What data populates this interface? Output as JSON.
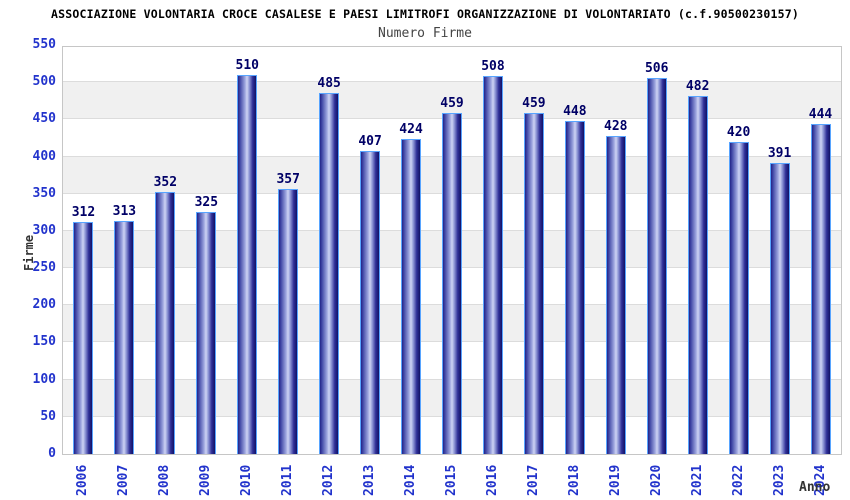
{
  "header": {
    "title": "ASSOCIAZIONE VOLONTARIA CROCE CASALESE E PAESI LIMITROFI ORGANIZZAZIONE DI VOLONTARIATO (c.f.90500230157)",
    "subtitle": "Numero Firme"
  },
  "chart_data": {
    "type": "bar",
    "title": "Numero Firme",
    "categories": [
      "2006",
      "2007",
      "2008",
      "2009",
      "2010",
      "2011",
      "2012",
      "2013",
      "2014",
      "2015",
      "2016",
      "2017",
      "2018",
      "2019",
      "2020",
      "2021",
      "2022",
      "2023",
      "2024"
    ],
    "values": [
      312,
      313,
      352,
      325,
      510,
      357,
      485,
      407,
      424,
      459,
      508,
      459,
      448,
      428,
      506,
      482,
      420,
      391,
      444
    ],
    "xlabel": "Anno",
    "ylabel": "Firme",
    "ylim": [
      0,
      550
    ],
    "ytick_step": 50,
    "yticks": [
      0,
      50,
      100,
      150,
      200,
      250,
      300,
      350,
      400,
      450,
      500,
      550
    ],
    "grid": "horizontal-bands",
    "legend_position": "none",
    "colors": {
      "bar_dark": "#1b1b80",
      "bar_highlight": "#ced4f4",
      "bar_outline": "#57a4ff",
      "value_label": "#000066",
      "tick_label": "#2233cc",
      "axis_title": "#333333",
      "band_gray": "#f0f0f0",
      "grid_line": "#dcdcdc",
      "plot_border": "#c6c6c6",
      "title": "#000000",
      "subtitle": "#444444"
    }
  }
}
